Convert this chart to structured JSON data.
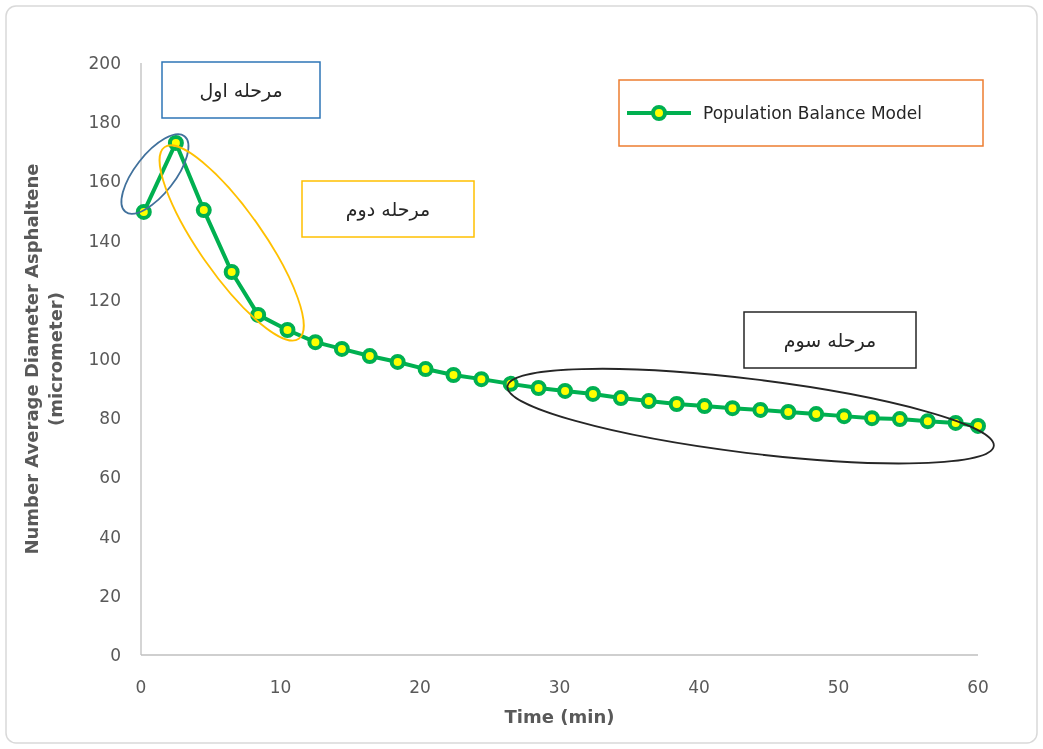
{
  "chart_data": {
    "type": "line",
    "xlabel": "Time (min)",
    "ylabel": "Number Average Diameter Asphaltene (micrometer)",
    "x": [
      0.2,
      2.5,
      4.5,
      6.5,
      8.4,
      10.5,
      12.5,
      14.4,
      16.4,
      18.4,
      20.4,
      22.4,
      24.4,
      26.5,
      28.5,
      30.4,
      32.4,
      34.4,
      36.4,
      38.4,
      40.4,
      42.4,
      44.4,
      46.4,
      48.4,
      50.4,
      52.4,
      54.4,
      56.4,
      58.4,
      60
    ],
    "series": [
      {
        "name": "Population Balance Model",
        "color": "#00b050",
        "values": [
          149.7,
          173,
          150.3,
          129.4,
          114.9,
          109.8,
          105.7,
          103.4,
          101,
          99,
          96.6,
          94.6,
          93.2,
          91.6,
          90.2,
          89.2,
          88.2,
          86.8,
          85.8,
          84.8,
          84.1,
          83.4,
          82.8,
          82.1,
          81.4,
          80.7,
          80,
          79.7,
          79,
          78.4,
          77.4
        ]
      }
    ],
    "xlim": [
      0,
      60
    ],
    "xticks": [
      0,
      10,
      20,
      30,
      40,
      50,
      60
    ],
    "ylim": [
      0,
      200
    ],
    "yticks": [
      0,
      20,
      40,
      60,
      80,
      100,
      120,
      140,
      160,
      180,
      200
    ],
    "marker": "circle",
    "line_style": "solid",
    "grid": false,
    "legend": "top right",
    "annotations": [
      "مرحله اول",
      "مرحله دوم",
      "مرحله سوم"
    ]
  }
}
